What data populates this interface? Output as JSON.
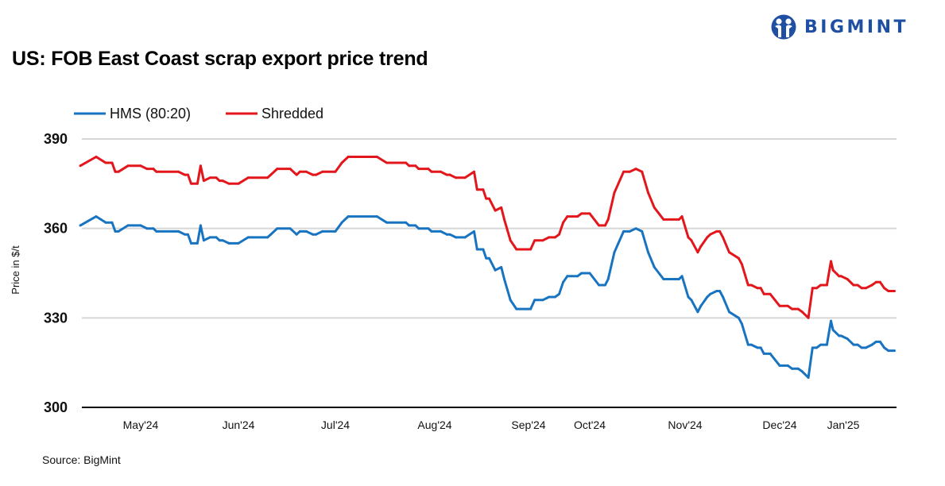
{
  "header": {
    "title": "US: FOB East Coast scrap export price trend",
    "logo_text": "BIGMINT",
    "brand_color": "#1e4fa3"
  },
  "footer": {
    "source": "Source: BigMint"
  },
  "chart_data": {
    "type": "line",
    "title": "US: FOB East Coast scrap export price trend",
    "xlabel": "",
    "ylabel": "Price in $/t",
    "ylim": [
      300,
      390
    ],
    "yticks": [
      300,
      330,
      360,
      390
    ],
    "grid": true,
    "legend": "top-left",
    "xtick_labels": [
      "May'24",
      "Jun'24",
      "Jul'24",
      "Aug'24",
      "Sep'24",
      "Oct'24",
      "Nov'24",
      "Dec'24",
      "Jan'25"
    ],
    "x": [
      "2024-04-26",
      "2024-05-01",
      "2024-05-04",
      "2024-05-06",
      "2024-05-07",
      "2024-05-08",
      "2024-05-11",
      "2024-05-15",
      "2024-05-17",
      "2024-05-19",
      "2024-05-20",
      "2024-05-27",
      "2024-05-29",
      "2024-05-30",
      "2024-05-31",
      "2024-06-02",
      "2024-06-03",
      "2024-06-04",
      "2024-06-06",
      "2024-06-08",
      "2024-06-09",
      "2024-06-10",
      "2024-06-12",
      "2024-06-15",
      "2024-06-18",
      "2024-06-24",
      "2024-06-25",
      "2024-06-27",
      "2024-07-01",
      "2024-07-03",
      "2024-07-04",
      "2024-07-06",
      "2024-07-08",
      "2024-07-09",
      "2024-07-11",
      "2024-07-15",
      "2024-07-17",
      "2024-07-19",
      "2024-07-28",
      "2024-07-31",
      "2024-08-06",
      "2024-08-07",
      "2024-08-09",
      "2024-08-10",
      "2024-08-13",
      "2024-08-14",
      "2024-08-17",
      "2024-08-19",
      "2024-08-20",
      "2024-08-22",
      "2024-08-25",
      "2024-08-28",
      "2024-08-29",
      "2024-08-31",
      "2024-09-01",
      "2024-09-02",
      "2024-09-04",
      "2024-09-06",
      "2024-09-07",
      "2024-09-09",
      "2024-09-11",
      "2024-09-16",
      "2024-09-18",
      "2024-09-22",
      "2024-09-25",
      "2024-09-28",
      "2024-09-30",
      "2024-10-02",
      "2024-10-04",
      "2024-10-09",
      "2024-10-11",
      "2024-10-15",
      "2024-10-18",
      "2024-10-20",
      "2024-10-21",
      "2024-10-23",
      "2024-10-26",
      "2024-10-28",
      "2024-10-30",
      "2024-11-01",
      "2024-11-03",
      "2024-11-05",
      "2024-11-08",
      "2024-11-13",
      "2024-11-14",
      "2024-11-16",
      "2024-11-17",
      "2024-11-19",
      "2024-11-20",
      "2024-11-22",
      "2024-11-23",
      "2024-11-25",
      "2024-11-26",
      "2024-11-27",
      "2024-11-29",
      "2024-12-02",
      "2024-12-03",
      "2024-12-05",
      "2024-12-06",
      "2024-12-08",
      "2024-12-09",
      "2024-12-10",
      "2024-12-12",
      "2024-12-15",
      "2024-12-19",
      "2024-12-21",
      "2024-12-24",
      "2024-12-26",
      "2024-12-29",
      "2024-12-31",
      "2025-01-02",
      "2025-01-04",
      "2025-01-07",
      "2025-01-09",
      "2025-01-10",
      "2025-01-13",
      "2025-01-14",
      "2025-01-17",
      "2025-01-20",
      "2025-01-22",
      "2025-01-24",
      "2025-01-26",
      "2025-01-29",
      "2025-01-31",
      "2025-02-02",
      "2025-02-04",
      "2025-02-06",
      "2025-02-09"
    ],
    "series": [
      {
        "name": "HMS (80:20)",
        "color": "#1874c0",
        "values": [
          361,
          364,
          362,
          362,
          359,
          359,
          361,
          361,
          360,
          360,
          359,
          359,
          358,
          358,
          355,
          355,
          361,
          356,
          357,
          357,
          356,
          356,
          355,
          355,
          357,
          357,
          358,
          360,
          360,
          358,
          359,
          359,
          358,
          358,
          359,
          359,
          362,
          364,
          364,
          362,
          362,
          361,
          361,
          360,
          360,
          359,
          359,
          358,
          358,
          357,
          357,
          359,
          353,
          353,
          350,
          350,
          346,
          347,
          343,
          336,
          333,
          333,
          336,
          336,
          337,
          337,
          338,
          342,
          344,
          344,
          345,
          345,
          341,
          341,
          343,
          352,
          359,
          359,
          360,
          359,
          352,
          347,
          343,
          343,
          344,
          337,
          336,
          332,
          334,
          337,
          338,
          339,
          339,
          337,
          332,
          330,
          328,
          321,
          321,
          320,
          320,
          318,
          318,
          314,
          314,
          313,
          313,
          312,
          310,
          320,
          320,
          321,
          321,
          329,
          326,
          324,
          324,
          323,
          321,
          321,
          320,
          320,
          321,
          322,
          322,
          320,
          319,
          319
        ]
      },
      {
        "name": "Shredded",
        "color": "#e3161b",
        "values": [
          381,
          384,
          382,
          382,
          379,
          379,
          381,
          381,
          380,
          380,
          379,
          379,
          378,
          378,
          375,
          375,
          381,
          376,
          377,
          377,
          376,
          376,
          375,
          375,
          377,
          377,
          378,
          380,
          380,
          378,
          379,
          379,
          378,
          378,
          379,
          379,
          382,
          384,
          384,
          382,
          382,
          381,
          381,
          380,
          380,
          379,
          379,
          378,
          378,
          377,
          377,
          379,
          373,
          373,
          370,
          370,
          366,
          367,
          363,
          356,
          353,
          353,
          356,
          356,
          357,
          357,
          358,
          362,
          364,
          364,
          365,
          365,
          361,
          361,
          363,
          372,
          379,
          379,
          380,
          379,
          372,
          367,
          363,
          363,
          364,
          357,
          356,
          352,
          354,
          357,
          358,
          359,
          359,
          357,
          352,
          350,
          348,
          341,
          341,
          340,
          340,
          338,
          338,
          334,
          334,
          333,
          333,
          332,
          330,
          340,
          340,
          341,
          341,
          349,
          346,
          344,
          344,
          343,
          341,
          341,
          340,
          340,
          341,
          342,
          342,
          340,
          339,
          339
        ]
      }
    ]
  }
}
